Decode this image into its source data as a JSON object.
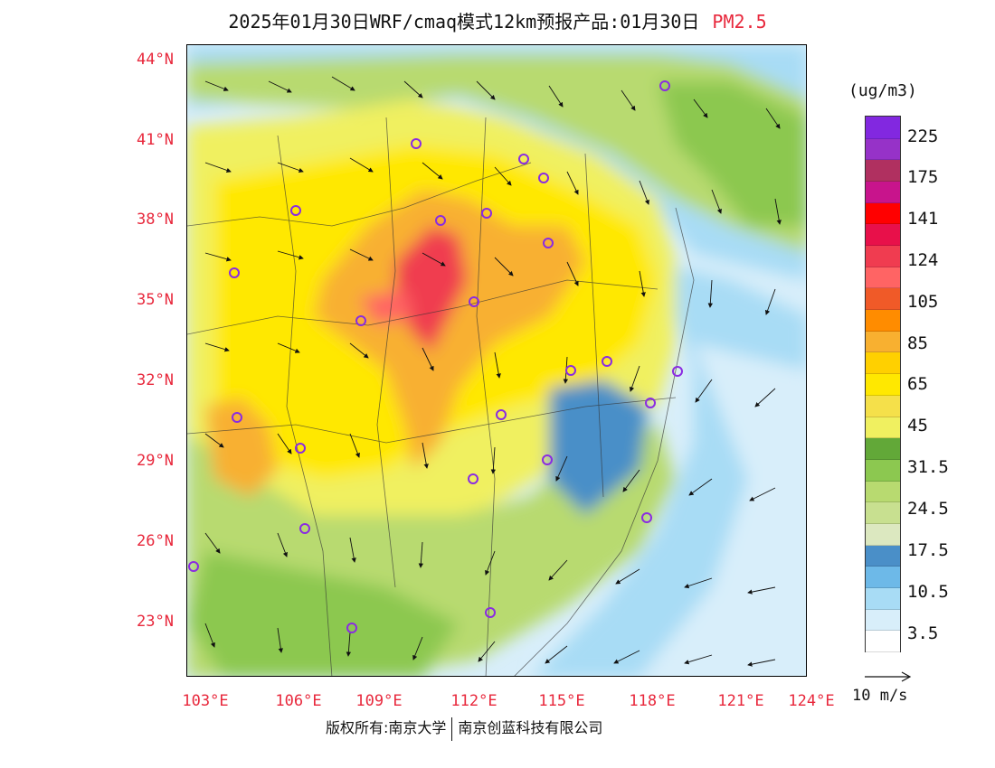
{
  "title": {
    "main": "2025年01月30日WRF/cmaq模式12km预报产品:01月30日",
    "pollutant": "PM2.5"
  },
  "map": {
    "lat_ticks": [
      "44°N",
      "41°N",
      "38°N",
      "35°N",
      "32°N",
      "29°N",
      "26°N",
      "23°N"
    ],
    "lon_ticks": [
      "103°E",
      "106°E",
      "109°E",
      "112°E",
      "115°E",
      "118°E",
      "121°E",
      "124°E"
    ]
  },
  "colorbar": {
    "unit": "(ug/m3)",
    "bins": [
      {
        "color": "#ffffff"
      },
      {
        "color": "#d8eefa"
      },
      {
        "color": "#a8dcf5"
      },
      {
        "color": "#6db9e8"
      },
      {
        "color": "#4a8fc8"
      },
      {
        "color": "#dce8c0"
      },
      {
        "color": "#c8e090"
      },
      {
        "color": "#b8da70"
      },
      {
        "color": "#8cc850"
      },
      {
        "color": "#62a838"
      },
      {
        "color": "#f0f060"
      },
      {
        "color": "#f5e04a"
      },
      {
        "color": "#ffe800"
      },
      {
        "color": "#ffd000"
      },
      {
        "color": "#f8b030"
      },
      {
        "color": "#ff8c00"
      },
      {
        "color": "#f05a28"
      },
      {
        "color": "#ff6464"
      },
      {
        "color": "#f03c50"
      },
      {
        "color": "#e8104a"
      },
      {
        "color": "#ff0000"
      },
      {
        "color": "#c8148c"
      },
      {
        "color": "#b03060"
      },
      {
        "color": "#9632c8"
      },
      {
        "color": "#8228e0"
      }
    ],
    "labels": [
      "3.5",
      "10.5",
      "17.5",
      "24.5",
      "31.5",
      "45",
      "65",
      "85",
      "105",
      "124",
      "141",
      "175",
      "225"
    ]
  },
  "wind_reference": "10 m/s",
  "copyright": {
    "left": "版权所有:南京大学",
    "right": "南京创蓝科技有限公司"
  }
}
